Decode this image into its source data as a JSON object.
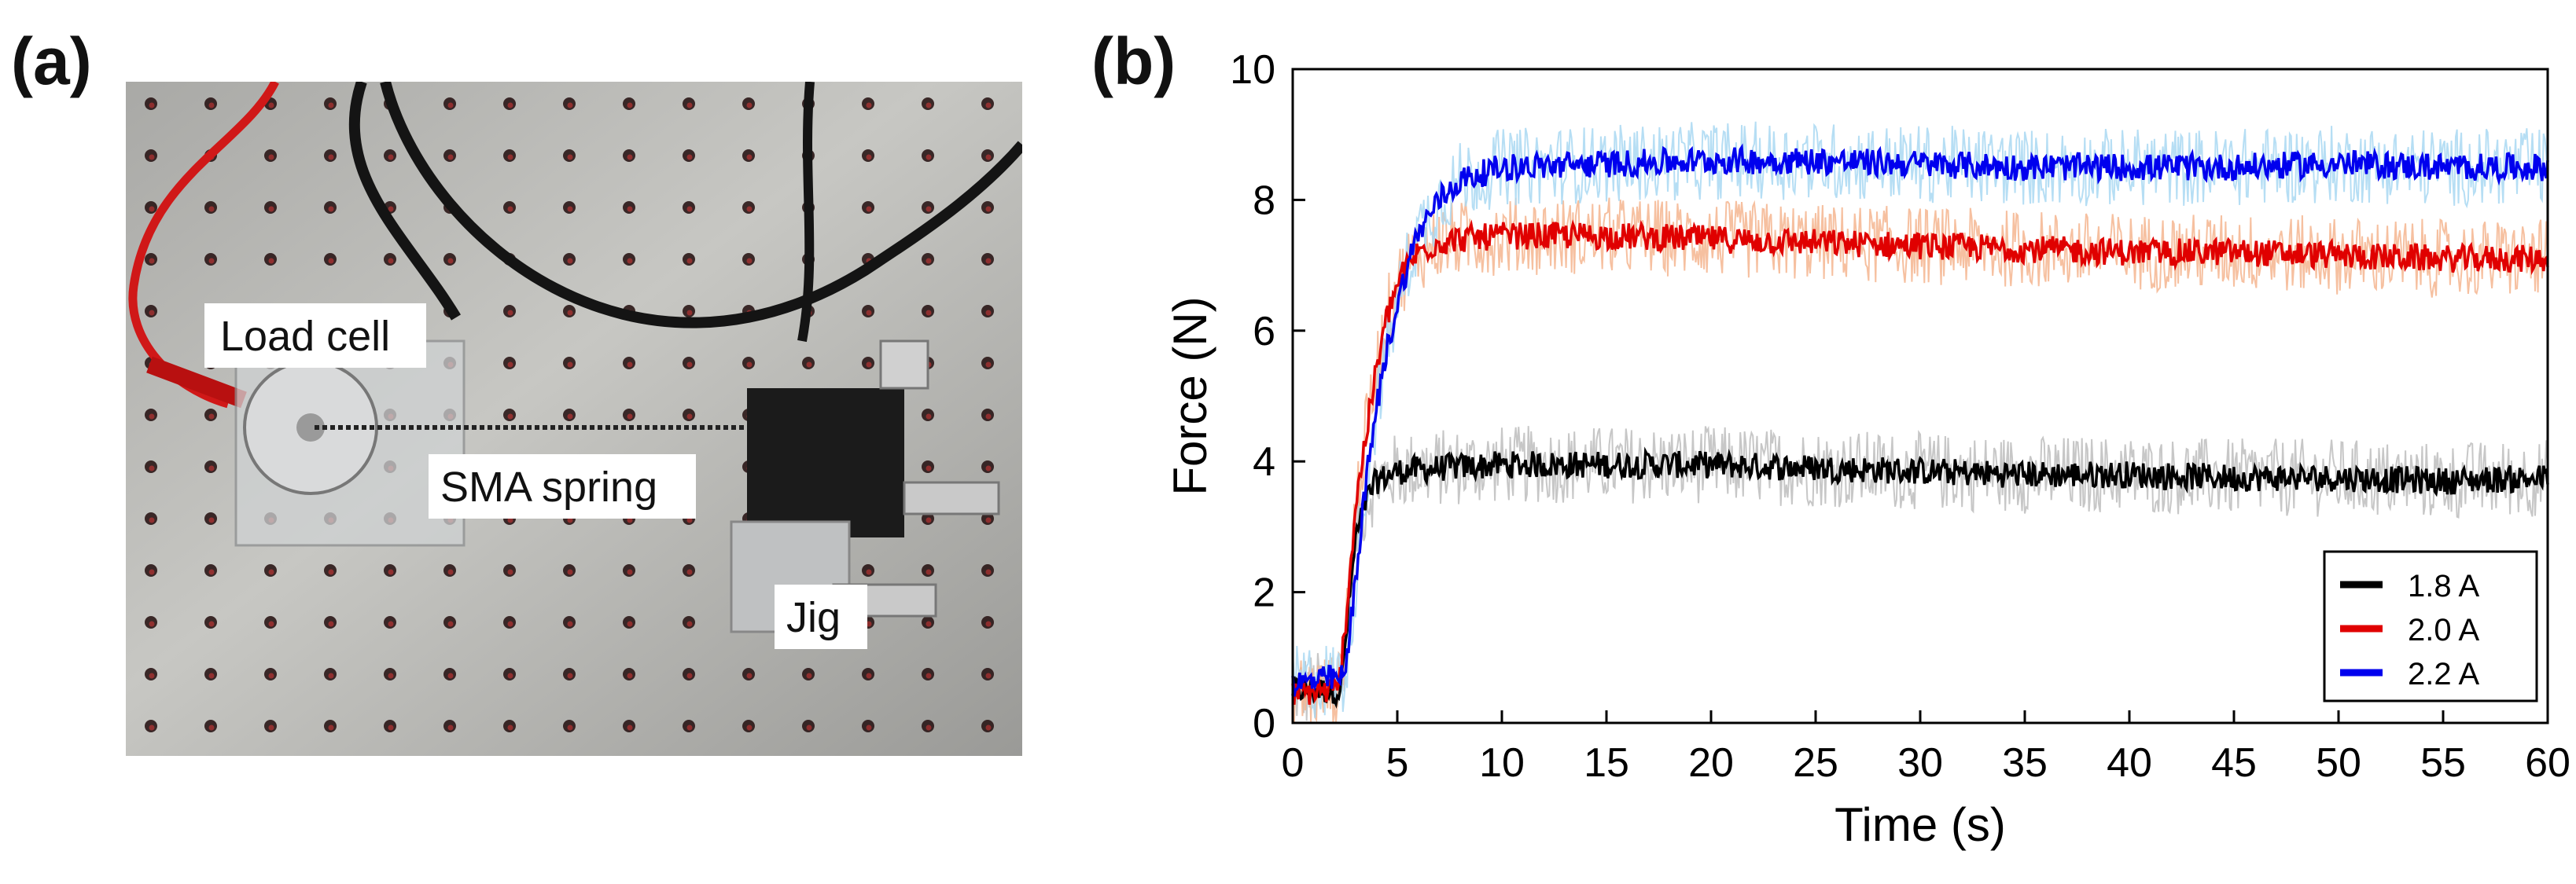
{
  "panel_a": {
    "label": "(a)",
    "annotations": {
      "load_cell": "Load cell",
      "sma_spring": "SMA spring",
      "jig": "Jig"
    }
  },
  "panel_b": {
    "label": "(b)"
  },
  "chart_data": {
    "type": "line",
    "title": "",
    "xlabel": "Time (s)",
    "ylabel": "Force (N)",
    "xlim": [
      0,
      60
    ],
    "ylim": [
      0,
      10
    ],
    "xticks": [
      0,
      5,
      10,
      15,
      20,
      25,
      30,
      35,
      40,
      45,
      50,
      55,
      60
    ],
    "yticks": [
      0,
      2,
      4,
      6,
      8,
      10
    ],
    "legend_position": "bottom-right",
    "series": [
      {
        "name": "1.8 A",
        "color": "#000000",
        "band_color": "#bdbdbd",
        "band_halfwidth": 0.6,
        "x": [
          0,
          2.3,
          2.6,
          3.0,
          3.5,
          4.0,
          5.0,
          7,
          10,
          15,
          20,
          25,
          30,
          35,
          40,
          45,
          50,
          55,
          60
        ],
        "y": [
          0.5,
          0.5,
          1.5,
          2.8,
          3.4,
          3.7,
          3.85,
          3.9,
          3.95,
          3.95,
          3.95,
          3.9,
          3.85,
          3.8,
          3.8,
          3.75,
          3.75,
          3.7,
          3.75
        ]
      },
      {
        "name": "2.0 A",
        "color": "#e00000",
        "band_color": "#f5b58f",
        "band_halfwidth": 0.6,
        "x": [
          0,
          2.2,
          2.6,
          3.0,
          3.5,
          4.0,
          4.5,
          5.0,
          5.5,
          6,
          7,
          8,
          10,
          15,
          20,
          25,
          30,
          35,
          40,
          45,
          50,
          55,
          60
        ],
        "y": [
          0.45,
          0.5,
          1.8,
          3.3,
          4.4,
          5.4,
          6.2,
          6.7,
          7.0,
          7.2,
          7.35,
          7.4,
          7.45,
          7.45,
          7.4,
          7.35,
          7.3,
          7.25,
          7.2,
          7.2,
          7.15,
          7.1,
          7.1
        ]
      },
      {
        "name": "2.2 A",
        "color": "#0000ee",
        "band_color": "#a9d8f2",
        "band_halfwidth": 0.6,
        "x": [
          0,
          2.5,
          2.8,
          3.2,
          3.6,
          4.0,
          4.5,
          5.0,
          5.5,
          6,
          7,
          8,
          10,
          15,
          20,
          25,
          30,
          35,
          40,
          45,
          50,
          55,
          60
        ],
        "y": [
          0.6,
          0.7,
          1.6,
          2.8,
          3.9,
          4.8,
          5.7,
          6.4,
          7.0,
          7.5,
          8.0,
          8.3,
          8.5,
          8.55,
          8.6,
          8.6,
          8.55,
          8.5,
          8.5,
          8.5,
          8.55,
          8.5,
          8.5
        ]
      }
    ]
  }
}
